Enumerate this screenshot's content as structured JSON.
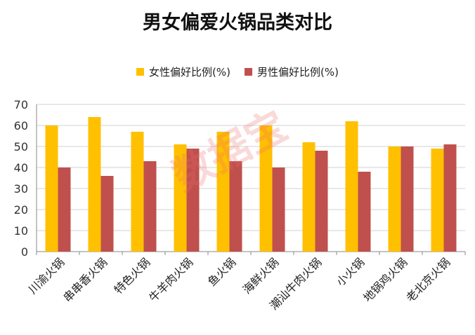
{
  "chart_data": {
    "type": "bar",
    "title": "男女偏爱火锅品类对比",
    "xlabel": "",
    "ylabel": "",
    "ylim": [
      0,
      70
    ],
    "yticks": [
      0,
      10,
      20,
      30,
      40,
      50,
      60,
      70
    ],
    "grid": true,
    "legend_position": "top-center",
    "categories": [
      "川渝火锅",
      "串串香火锅",
      "特色火锅",
      "牛羊肉火锅",
      "鱼火锅",
      "海鲜火锅",
      "潮汕牛肉火锅",
      "小火锅",
      "地锅鸡火锅",
      "老北京火锅"
    ],
    "series": [
      {
        "name": "女性偏好比例(%)",
        "color": "#FFC000",
        "values": [
          60,
          64,
          57,
          51,
          57,
          60,
          52,
          62,
          50,
          49
        ]
      },
      {
        "name": "男性偏好比例(%)",
        "color": "#C0504D",
        "values": [
          40,
          36,
          43,
          49,
          43,
          40,
          48,
          38,
          50,
          51
        ]
      }
    ]
  },
  "watermark": "数据宝"
}
